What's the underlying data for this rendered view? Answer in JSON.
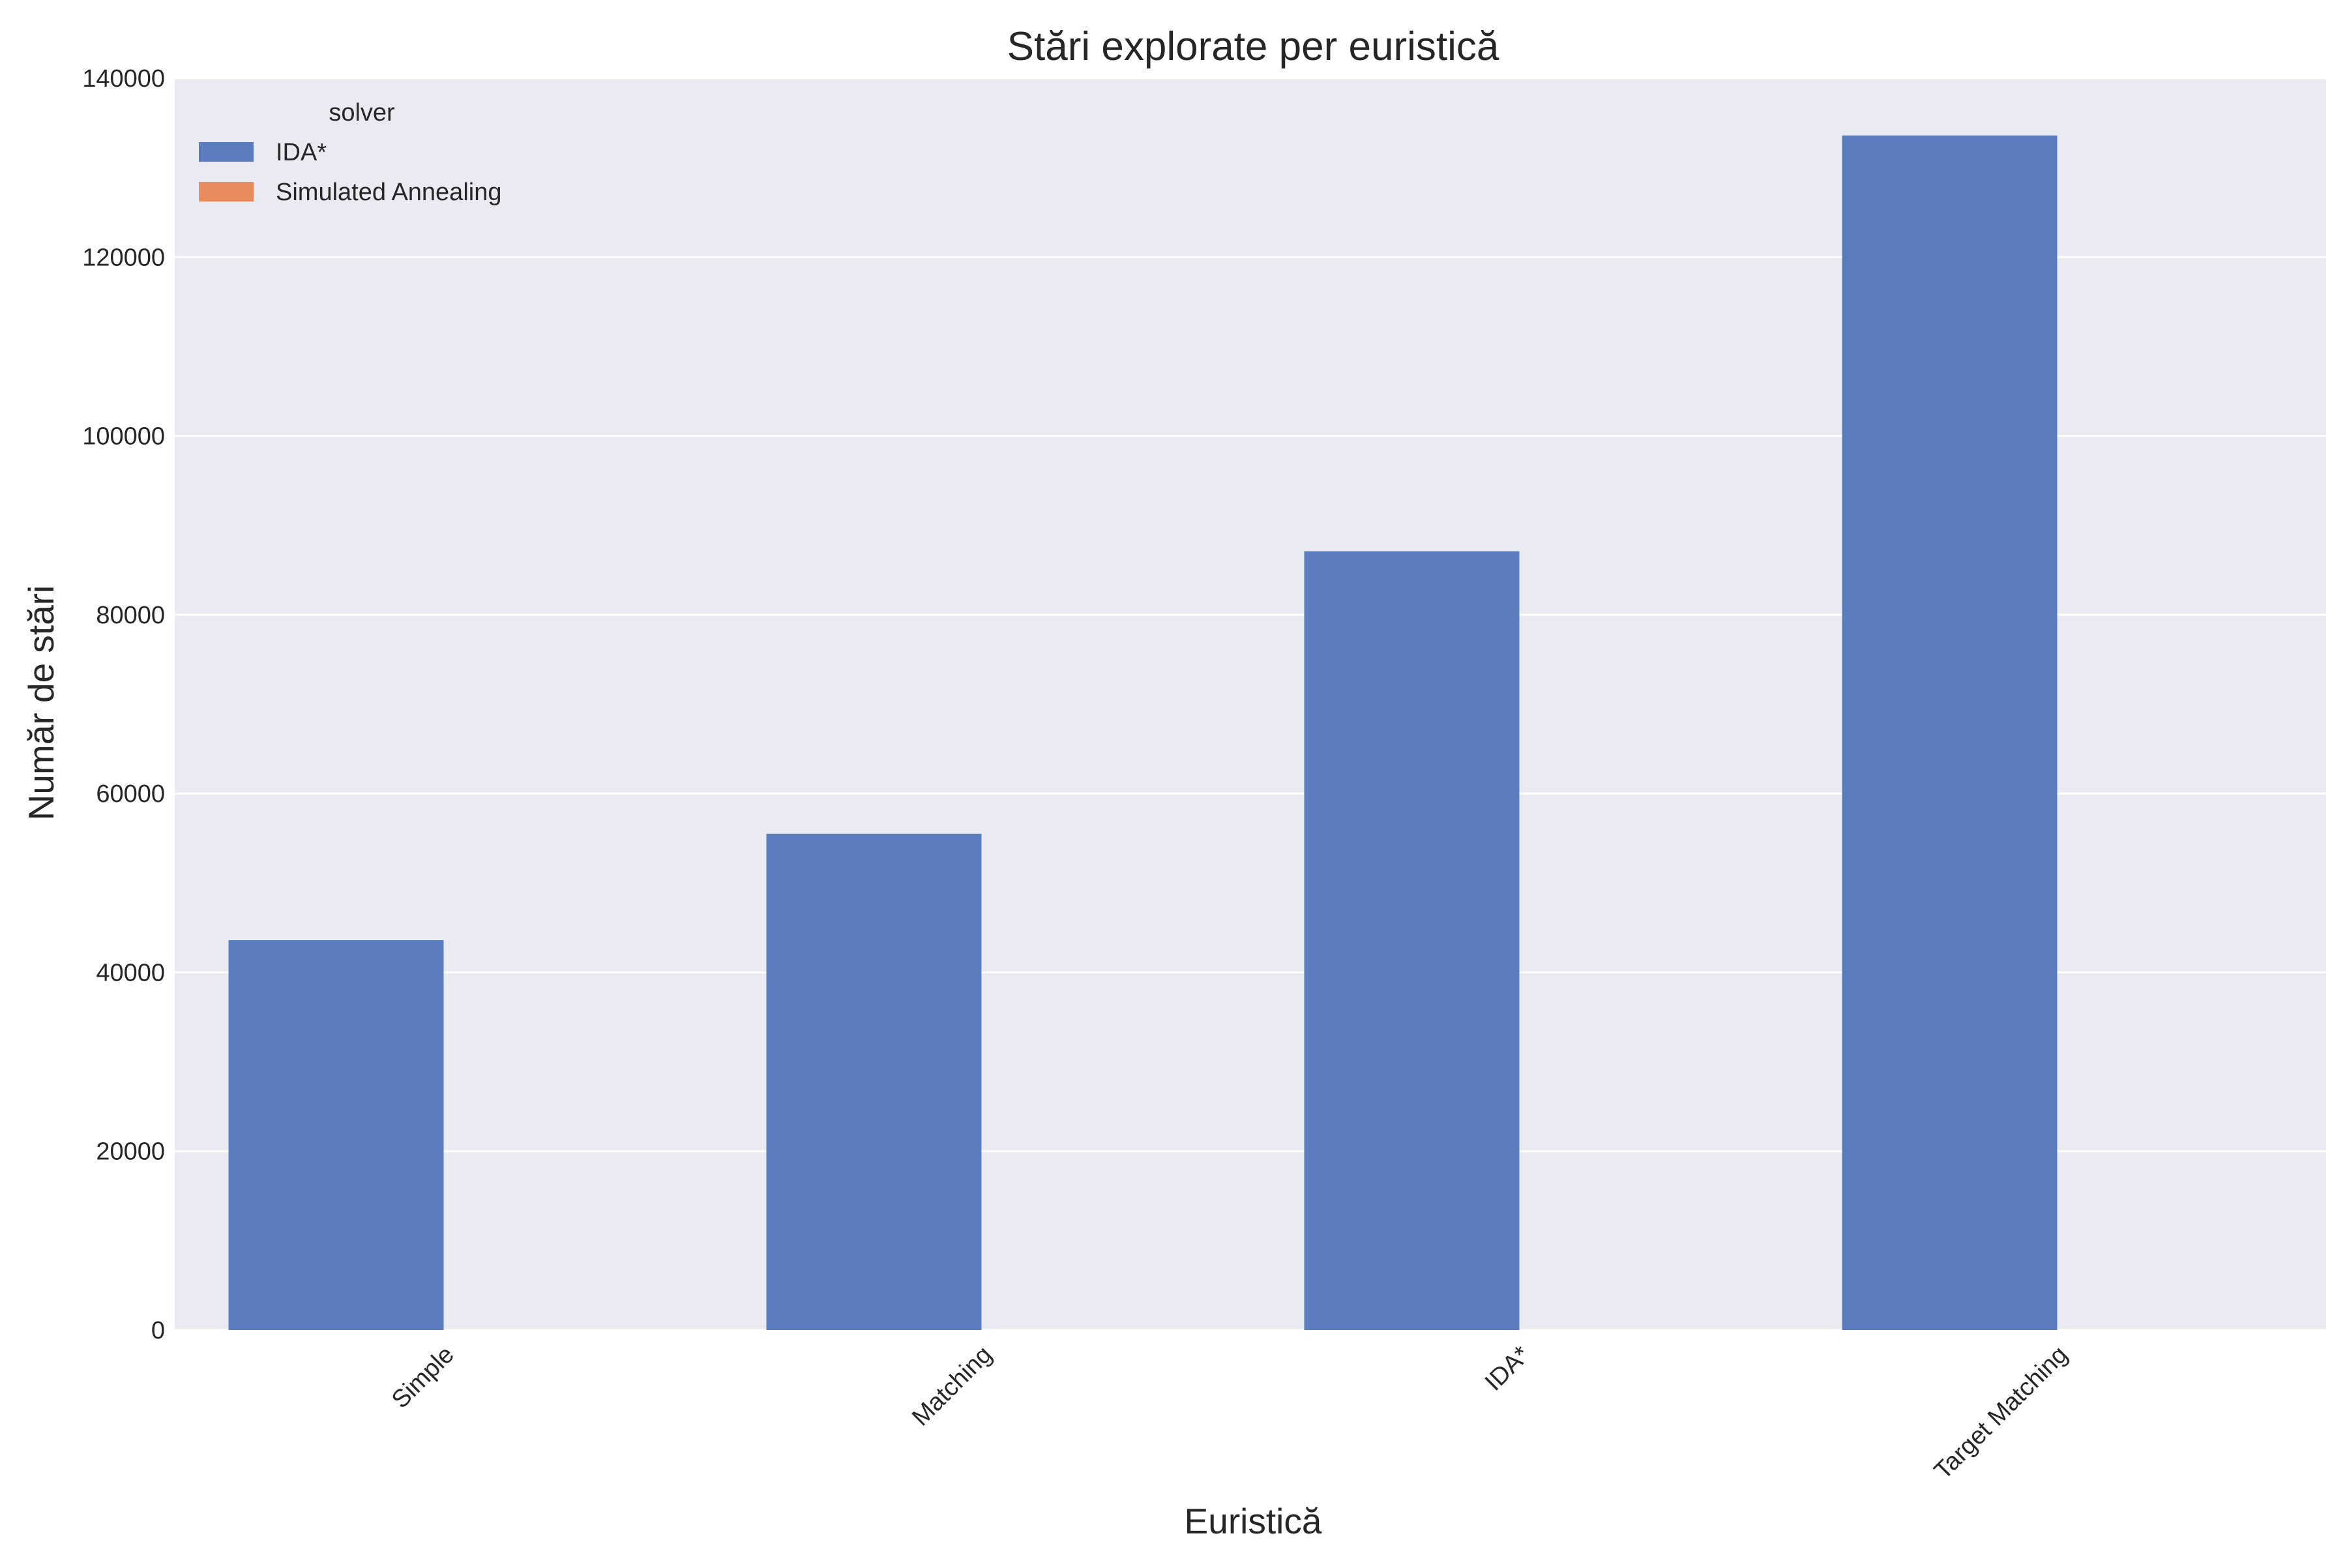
{
  "chart_data": {
    "type": "bar",
    "title": "Stări explorate per euristică",
    "xlabel": "Euristică",
    "ylabel": "Număr de stări",
    "categories": [
      "Simple",
      "Matching",
      "IDA*",
      "Target Matching"
    ],
    "series": [
      {
        "name": "IDA*",
        "values": [
          43600,
          55500,
          87100,
          133600
        ]
      },
      {
        "name": "Simulated Annealing",
        "values": [
          0,
          0,
          0,
          0
        ]
      }
    ],
    "ylim": [
      0,
      140000
    ],
    "yticks": [
      0,
      20000,
      40000,
      60000,
      80000,
      100000,
      120000,
      140000
    ],
    "grid": true,
    "legend": {
      "title": "solver",
      "position": "top-left"
    },
    "x_tick_rotation_deg": 45
  },
  "colors": {
    "plot_background": "#EAEAF2",
    "grid": "#FFFFFF",
    "series": [
      "#5B7DBF",
      "#E88B5F"
    ]
  }
}
